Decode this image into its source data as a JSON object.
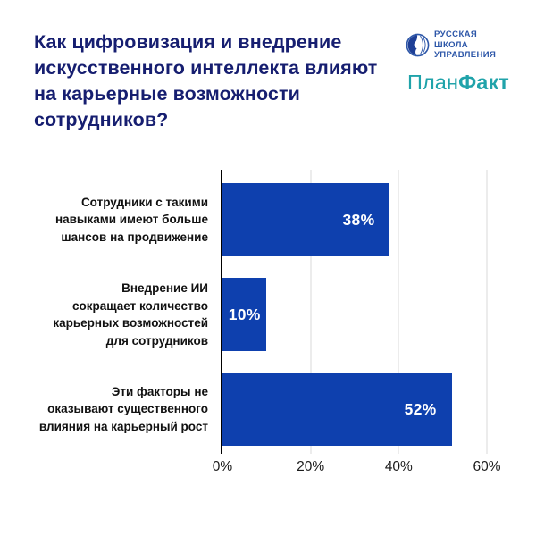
{
  "header": {
    "title_lines": [
      "Как цифровизация и внедрение",
      "искусственного интеллекта влияют",
      "на карьерные возможности",
      "сотрудников?"
    ],
    "logos": {
      "rsu": {
        "lines": [
          "РУССКАЯ",
          "ШКОЛА",
          "УПРАВЛЕНИЯ"
        ],
        "icon": "globe-icon"
      },
      "planfact": {
        "part_regular": "План",
        "part_bold": "Факт"
      }
    }
  },
  "colors": {
    "title": "#161e70",
    "bar_blue": "#0e40ae",
    "rsu_blue": "#2c56a8",
    "rsu_dark": "#1e3f96",
    "planfact_teal": "#20a3aa",
    "axis_line": "#000000",
    "gridline": "#d9d9d9",
    "category_label": "#111111",
    "tick_label": "#1a1a1a",
    "background": "#ffffff",
    "value_label": "#ffffff"
  },
  "chart_data": {
    "type": "bar",
    "orientation": "horizontal",
    "categories": [
      [
        "Сотрудники с такими",
        "навыками имеют больше",
        "шансов на продвижение"
      ],
      [
        "Внедрение ИИ",
        "сокращает количество",
        "карьерных возможностей",
        "для сотрудников"
      ],
      [
        "Эти факторы не",
        "оказывают существенного",
        "влияния на карьерный рост"
      ]
    ],
    "values": [
      38,
      10,
      52
    ],
    "value_labels": [
      "38%",
      "10%",
      "52%"
    ],
    "x_tick_values": [
      0,
      20,
      40,
      60
    ],
    "x_tick_labels": [
      "0%",
      "20%",
      "40%",
      "60%"
    ],
    "xlim": [
      0,
      60
    ],
    "grid": true,
    "legend": "none",
    "value_label_position": "inside-end"
  }
}
